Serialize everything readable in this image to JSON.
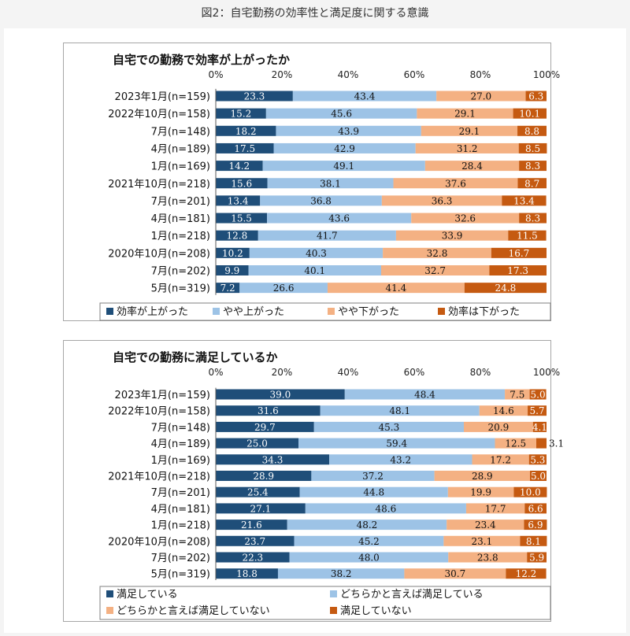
{
  "figure_title": "図2：自宅勤務の効率性と満足度に関する意識",
  "chart_data": [
    {
      "type": "bar",
      "orientation": "horizontal",
      "stacked": true,
      "title": "自宅での勤務で効率が上がったか",
      "xlim": [
        0,
        100
      ],
      "xticks": [
        "0%",
        "20%",
        "40%",
        "60%",
        "80%",
        "100%"
      ],
      "categories": [
        "2023年1月(n=159)",
        "2022年10月(n=158)",
        "7月(n=148)",
        "4月(n=189)",
        "1月(n=169)",
        "2021年10月(n=218)",
        "7月(n=201)",
        "4月(n=181)",
        "1月(n=218)",
        "2020年10月(n=208)",
        "7月(n=202)",
        "5月(n=319)"
      ],
      "series": [
        {
          "name": "効率が上がった",
          "color": "#1f4e79",
          "values": [
            23.3,
            15.2,
            18.2,
            17.5,
            14.2,
            15.6,
            13.4,
            15.5,
            12.8,
            10.2,
            9.9,
            7.2
          ]
        },
        {
          "name": "やや上がった",
          "color": "#9dc3e6",
          "values": [
            43.4,
            45.6,
            43.9,
            42.9,
            49.1,
            38.1,
            36.8,
            43.6,
            41.7,
            40.3,
            40.1,
            26.6
          ]
        },
        {
          "name": "やや下がった",
          "color": "#f4b183",
          "values": [
            27.0,
            29.1,
            29.1,
            31.2,
            28.4,
            37.6,
            36.3,
            32.6,
            33.9,
            32.8,
            32.7,
            41.4
          ]
        },
        {
          "name": "効率は下がった",
          "color": "#c55a11",
          "values": [
            6.3,
            10.1,
            8.8,
            8.5,
            8.3,
            8.7,
            13.4,
            8.3,
            11.5,
            16.7,
            17.3,
            24.8
          ]
        }
      ],
      "legend_placement": "bottom"
    },
    {
      "type": "bar",
      "orientation": "horizontal",
      "stacked": true,
      "title": "自宅での勤務に満足しているか",
      "xlim": [
        0,
        100
      ],
      "xticks": [
        "0%",
        "20%",
        "40%",
        "60%",
        "80%",
        "100%"
      ],
      "categories": [
        "2023年1月(n=159)",
        "2022年10月(n=158)",
        "7月(n=148)",
        "4月(n=189)",
        "1月(n=169)",
        "2021年10月(n=218)",
        "7月(n=201)",
        "4月(n=181)",
        "1月(n=218)",
        "2020年10月(n=208)",
        "7月(n=202)",
        "5月(n=319)"
      ],
      "series": [
        {
          "name": "満足している",
          "color": "#1f4e79",
          "values": [
            39.0,
            31.6,
            29.7,
            25.0,
            34.3,
            28.9,
            25.4,
            27.1,
            21.6,
            23.7,
            22.3,
            18.8
          ]
        },
        {
          "name": "どちらかと言えば満足している",
          "color": "#9dc3e6",
          "values": [
            48.4,
            48.1,
            45.3,
            59.4,
            43.2,
            37.2,
            44.8,
            48.6,
            48.2,
            45.2,
            48.0,
            38.2
          ]
        },
        {
          "name": "どちらかと言えば満足していない",
          "color": "#f4b183",
          "values": [
            7.5,
            14.6,
            20.9,
            12.5,
            17.2,
            28.9,
            19.9,
            17.7,
            23.4,
            23.1,
            23.8,
            30.7
          ]
        },
        {
          "name": "満足していない",
          "color": "#c55a11",
          "values": [
            5.0,
            5.7,
            4.1,
            3.1,
            5.3,
            5.0,
            10.0,
            6.6,
            6.9,
            8.1,
            5.9,
            12.2
          ]
        }
      ],
      "legend_placement": "bottom"
    }
  ]
}
